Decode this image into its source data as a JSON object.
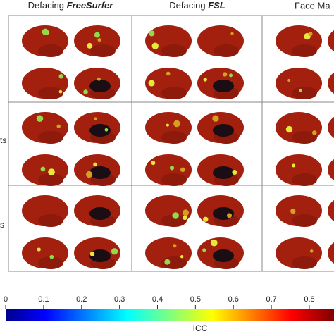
{
  "columns": [
    {
      "prefix": "Defacing",
      "tool": "FreeSurfer"
    },
    {
      "prefix": "Defacing",
      "tool": "FSL"
    },
    {
      "prefix": "Face Ma"
    }
  ],
  "row_labels": [
    "ts",
    "s"
  ],
  "colorbar": {
    "label": "ICC",
    "lim": [
      0,
      0.865
    ],
    "ticks": [
      0,
      0.1,
      0.2,
      0.3,
      0.4,
      0.5,
      0.6,
      0.7,
      0.8
    ]
  }
}
